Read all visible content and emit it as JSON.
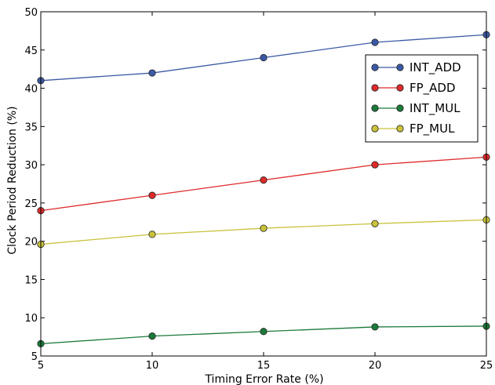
{
  "chart_data": {
    "type": "line",
    "xlabel": "Timing Error Rate (%)",
    "ylabel": "Clock Period Reduction (%)",
    "xlim": [
      5,
      25
    ],
    "ylim": [
      5,
      50
    ],
    "x_ticks": [
      5,
      10,
      15,
      20,
      25
    ],
    "y_ticks": [
      5,
      10,
      15,
      20,
      25,
      30,
      35,
      40,
      45,
      50
    ],
    "x": [
      5,
      10,
      15,
      20,
      25
    ],
    "grid": false,
    "legend_position": "top-right",
    "series": [
      {
        "name": "INT_ADD",
        "color": "#3b5aa5",
        "values": [
          41,
          42,
          44,
          46,
          47
        ]
      },
      {
        "name": "FP_ADD",
        "color": "#de2b2b",
        "values": [
          24,
          26,
          28,
          30,
          31
        ]
      },
      {
        "name": "INT_MUL",
        "color": "#1c7a3a",
        "values": [
          6.6,
          7.6,
          8.2,
          8.8,
          8.9
        ]
      },
      {
        "name": "FP_MUL",
        "color": "#c9c23a",
        "values": [
          19.6,
          20.9,
          21.7,
          22.3,
          22.8
        ]
      }
    ]
  }
}
